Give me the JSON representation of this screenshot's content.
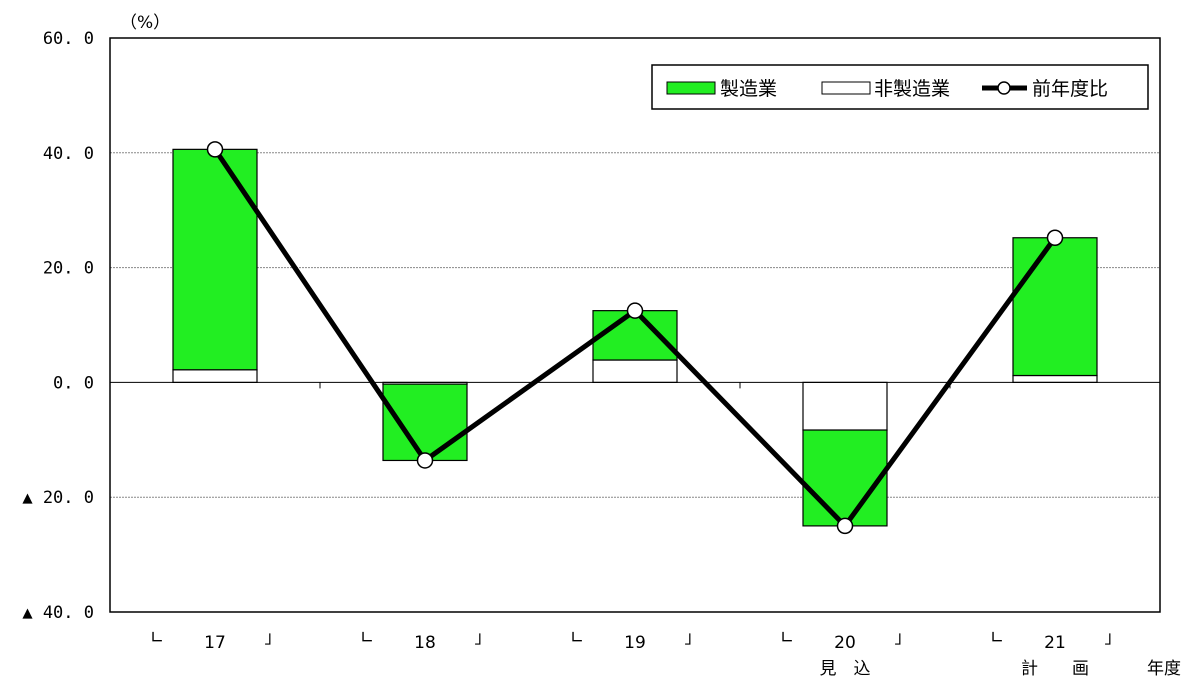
{
  "chart_data": {
    "type": "bar",
    "unit_label": "（%）",
    "categories": [
      "17",
      "18",
      "19",
      "20",
      "21"
    ],
    "category_brackets": {
      "left": "∟",
      "right": "」"
    },
    "category_sublabels": {
      "3": "見　込",
      "4": "計　　画"
    },
    "x_axis_suffix": "年度",
    "ylim": [
      -40,
      60
    ],
    "yticks": [
      {
        "value": 60,
        "label": "60. 0"
      },
      {
        "value": 40,
        "label": "40. 0"
      },
      {
        "value": 20,
        "label": "20. 0"
      },
      {
        "value": 0,
        "label": "0. 0"
      },
      {
        "value": -20,
        "label": "▲ 20. 0"
      },
      {
        "value": -40,
        "label": "▲ 40. 0"
      }
    ],
    "grid": true,
    "legend_position": "top-right",
    "series": [
      {
        "name": "製造業",
        "kind": "stacked-bar",
        "color": "#22ee22",
        "values": [
          38.4,
          -13.3,
          8.6,
          -16.7,
          24.0
        ]
      },
      {
        "name": "非製造業",
        "kind": "stacked-bar",
        "color": "#ffffff",
        "values": [
          2.2,
          -0.3,
          3.9,
          -8.3,
          1.2
        ]
      },
      {
        "name": "前年度比",
        "kind": "line",
        "color": "#000000",
        "values": [
          40.6,
          -13.6,
          12.5,
          -25.0,
          25.2
        ]
      }
    ]
  }
}
